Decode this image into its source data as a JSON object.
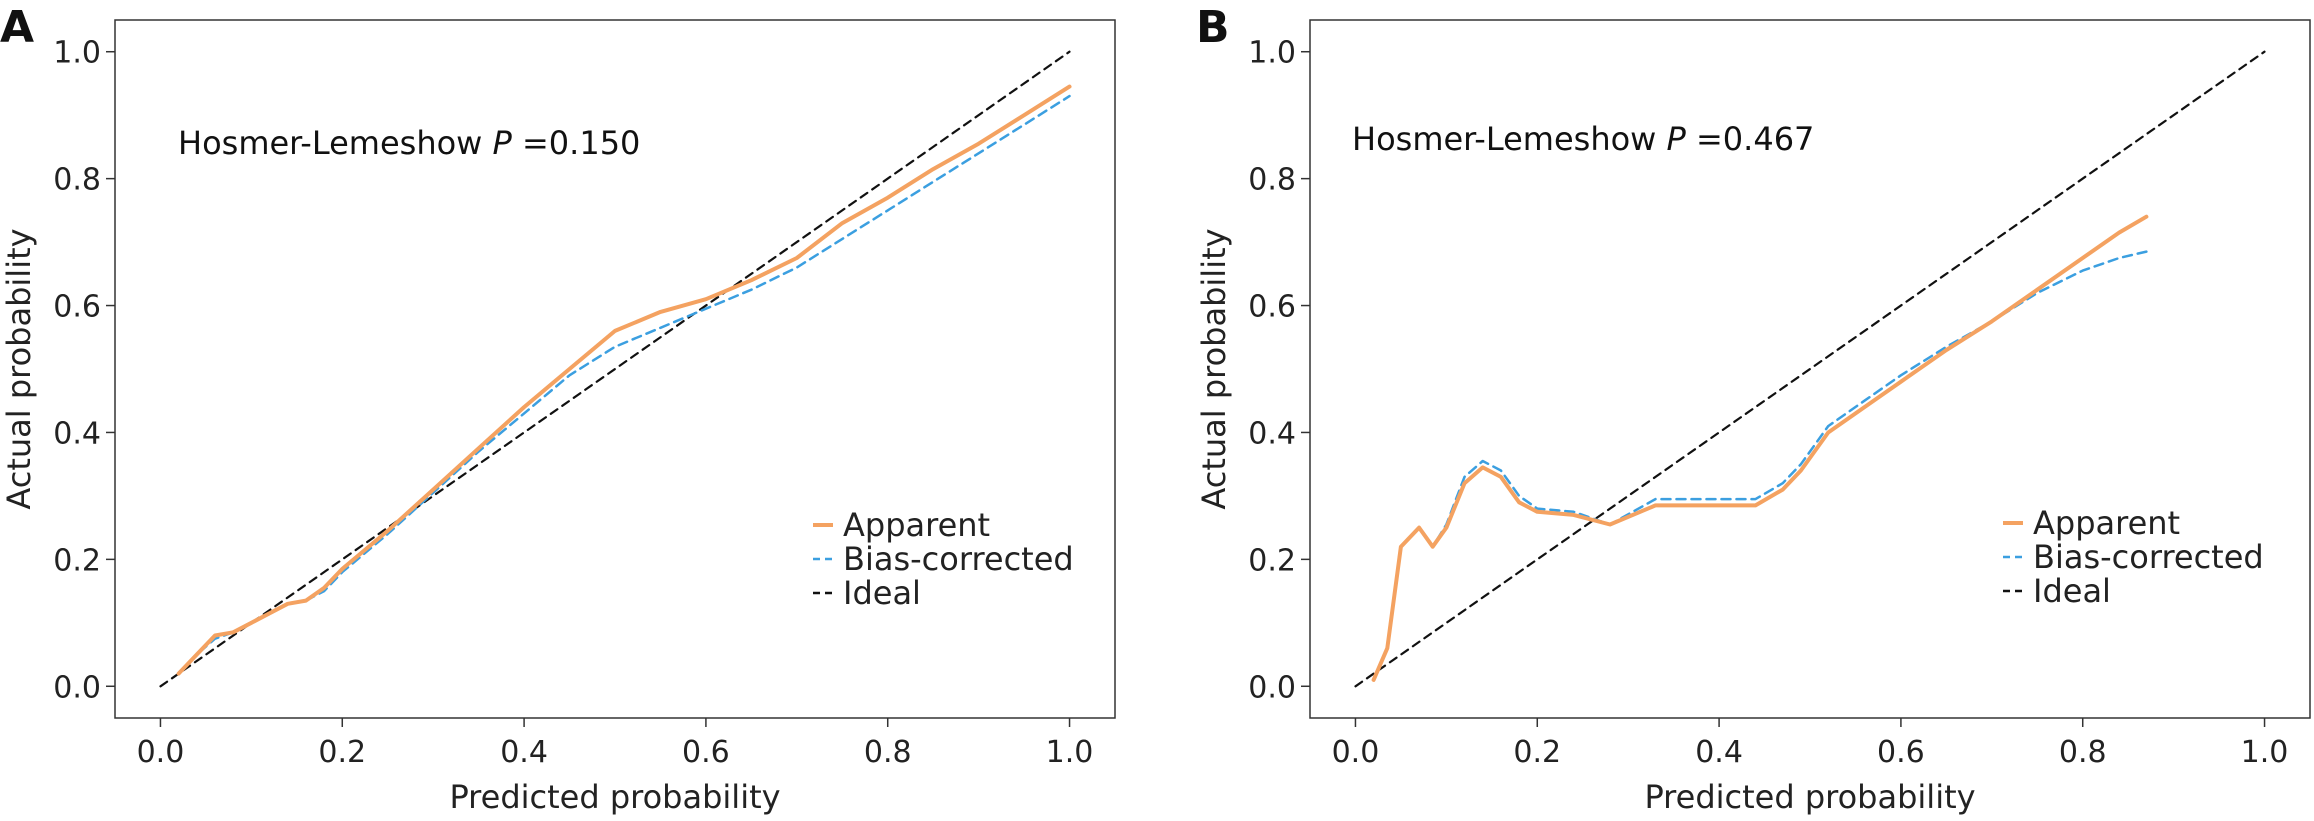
{
  "colors": {
    "apparent": "#f4a261",
    "bias_corrected": "#3b9fe0",
    "ideal": "#111111",
    "frame": "#333333"
  },
  "chart_data": [
    {
      "panel": "A",
      "type": "line",
      "xlabel": "Predicted probability",
      "ylabel": "Actual probability",
      "annotation": {
        "prefix": "Hosmer-Lemeshow ",
        "italic": "P",
        "suffix": " =0.150"
      },
      "xlim": [
        -0.05,
        1.05
      ],
      "ylim": [
        -0.05,
        1.05
      ],
      "xticks": [
        "0.0",
        "0.2",
        "0.4",
        "0.6",
        "0.8",
        "1.0"
      ],
      "yticks": [
        "0.0",
        "0.2",
        "0.4",
        "0.6",
        "0.8",
        "1.0"
      ],
      "legend": [
        "Apparent",
        "Bias-corrected",
        "Ideal"
      ],
      "legend_position": "bottom-right",
      "series": [
        {
          "name": "Apparent",
          "style": "solid",
          "x": [
            0.02,
            0.04,
            0.06,
            0.08,
            0.1,
            0.12,
            0.14,
            0.16,
            0.18,
            0.2,
            0.25,
            0.3,
            0.35,
            0.4,
            0.45,
            0.5,
            0.55,
            0.6,
            0.65,
            0.7,
            0.75,
            0.8,
            0.85,
            0.9,
            0.95,
            1.0
          ],
          "y": [
            0.02,
            0.05,
            0.08,
            0.085,
            0.1,
            0.115,
            0.13,
            0.135,
            0.155,
            0.185,
            0.245,
            0.31,
            0.375,
            0.44,
            0.5,
            0.56,
            0.59,
            0.61,
            0.64,
            0.675,
            0.73,
            0.77,
            0.815,
            0.855,
            0.9,
            0.945
          ]
        },
        {
          "name": "Bias-corrected",
          "style": "dashed",
          "x": [
            0.02,
            0.04,
            0.06,
            0.08,
            0.1,
            0.12,
            0.14,
            0.16,
            0.18,
            0.2,
            0.25,
            0.3,
            0.35,
            0.4,
            0.45,
            0.5,
            0.55,
            0.6,
            0.65,
            0.7,
            0.75,
            0.8,
            0.85,
            0.9,
            0.95,
            1.0
          ],
          "y": [
            0.02,
            0.05,
            0.075,
            0.085,
            0.1,
            0.115,
            0.13,
            0.135,
            0.15,
            0.18,
            0.24,
            0.305,
            0.37,
            0.43,
            0.49,
            0.535,
            0.565,
            0.595,
            0.625,
            0.66,
            0.705,
            0.75,
            0.795,
            0.84,
            0.885,
            0.93
          ]
        },
        {
          "name": "Ideal",
          "style": "dashed",
          "x": [
            0.0,
            1.0
          ],
          "y": [
            0.0,
            1.0
          ]
        }
      ]
    },
    {
      "panel": "B",
      "type": "line",
      "xlabel": "Predicted probability",
      "ylabel": "Actual probability",
      "annotation": {
        "prefix": "Hosmer-Lemeshow ",
        "italic": "P",
        "suffix": " =0.467"
      },
      "xlim": [
        -0.05,
        1.05
      ],
      "ylim": [
        -0.05,
        1.05
      ],
      "xticks": [
        "0.0",
        "0.2",
        "0.4",
        "0.6",
        "0.8",
        "1.0"
      ],
      "yticks": [
        "0.0",
        "0.2",
        "0.4",
        "0.6",
        "0.8",
        "1.0"
      ],
      "legend": [
        "Apparent",
        "Bias-corrected",
        "Ideal"
      ],
      "legend_position": "bottom-right",
      "series": [
        {
          "name": "Apparent",
          "style": "solid",
          "x": [
            0.02,
            0.035,
            0.05,
            0.07,
            0.085,
            0.1,
            0.12,
            0.14,
            0.16,
            0.18,
            0.2,
            0.24,
            0.28,
            0.33,
            0.38,
            0.44,
            0.47,
            0.49,
            0.52,
            0.56,
            0.6,
            0.65,
            0.7,
            0.75,
            0.8,
            0.84,
            0.87
          ],
          "y": [
            0.01,
            0.06,
            0.22,
            0.25,
            0.22,
            0.25,
            0.32,
            0.345,
            0.33,
            0.29,
            0.275,
            0.27,
            0.255,
            0.285,
            0.285,
            0.285,
            0.31,
            0.34,
            0.4,
            0.44,
            0.48,
            0.53,
            0.575,
            0.625,
            0.675,
            0.715,
            0.74
          ]
        },
        {
          "name": "Bias-corrected",
          "style": "dashed",
          "x": [
            0.02,
            0.035,
            0.05,
            0.07,
            0.085,
            0.1,
            0.12,
            0.14,
            0.16,
            0.18,
            0.2,
            0.24,
            0.28,
            0.33,
            0.38,
            0.44,
            0.47,
            0.49,
            0.52,
            0.56,
            0.6,
            0.65,
            0.7,
            0.75,
            0.8,
            0.84,
            0.87
          ],
          "y": [
            0.01,
            0.06,
            0.22,
            0.25,
            0.22,
            0.255,
            0.33,
            0.355,
            0.34,
            0.3,
            0.28,
            0.275,
            0.255,
            0.295,
            0.295,
            0.295,
            0.32,
            0.35,
            0.41,
            0.45,
            0.49,
            0.535,
            0.575,
            0.62,
            0.655,
            0.675,
            0.685
          ]
        },
        {
          "name": "Ideal",
          "style": "dashed",
          "x": [
            0.0,
            1.0
          ],
          "y": [
            0.0,
            1.0
          ]
        }
      ]
    }
  ]
}
